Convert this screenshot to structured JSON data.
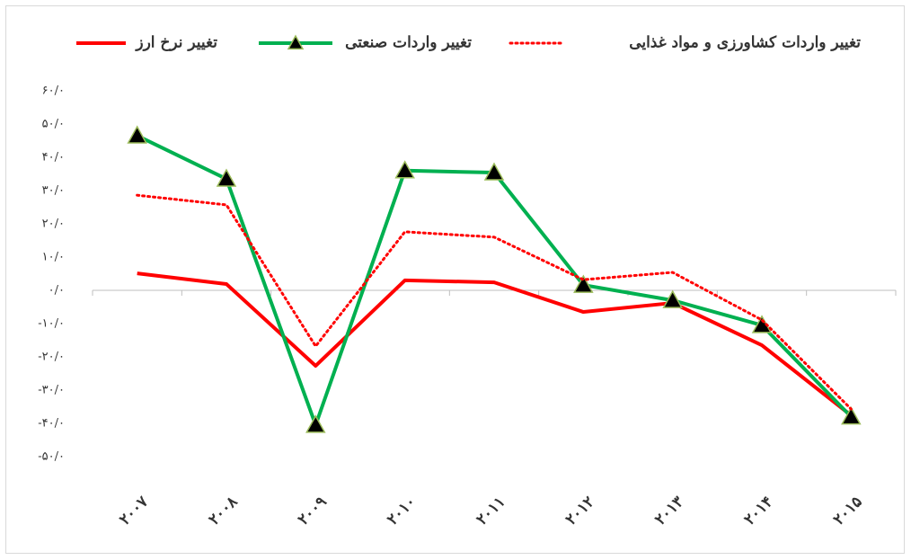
{
  "chart_data": {
    "type": "line",
    "categories": [
      "۲۰۰۷",
      "۲۰۰۸",
      "۲۰۰۹",
      "۲۰۱۰",
      "۲۰۱۱",
      "۲۰۱۲",
      "۲۰۱۳",
      "۲۰۱۴",
      "۲۰۱۵"
    ],
    "series": [
      {
        "name": "تغییر نرخ ارز",
        "color": "#ff0000",
        "line_style": "solid",
        "values": [
          5.1,
          1.9,
          -22.7,
          3.0,
          2.4,
          -6.5,
          -3.8,
          -16.5,
          -37.6
        ]
      },
      {
        "name": "تغییر واردات صنعتی",
        "color": "#00b050",
        "line_style": "solid",
        "marker": "triangle",
        "values": [
          46.5,
          33.5,
          -40.5,
          36.0,
          35.4,
          1.6,
          -3.0,
          -10.5,
          -38.0
        ]
      },
      {
        "name": "تغییر واردات کشاورزی و مواد غذایی",
        "color": "#ff0000",
        "line_style": "dotted",
        "values": [
          28.6,
          25.7,
          -16.8,
          17.6,
          16.0,
          3.2,
          5.4,
          -8.9,
          -35.7
        ]
      }
    ],
    "ylim": [
      -60,
      60
    ],
    "yticks": [
      {
        "value": 60,
        "label": "۶۰/۰"
      },
      {
        "value": 50,
        "label": "۵۰/۰"
      },
      {
        "value": 40,
        "label": "۴۰/۰"
      },
      {
        "value": 30,
        "label": "۳۰/۰"
      },
      {
        "value": 20,
        "label": "۲۰/۰"
      },
      {
        "value": 10,
        "label": "۱۰/۰"
      },
      {
        "value": 0,
        "label": "۰/۰"
      },
      {
        "value": -10,
        "label": "-۱۰/۰"
      },
      {
        "value": -20,
        "label": "-۲۰/۰"
      },
      {
        "value": -30,
        "label": "-۳۰/۰"
      },
      {
        "value": -40,
        "label": "-۴۰/۰"
      },
      {
        "value": -50,
        "label": "-۵۰/۰"
      }
    ],
    "grid": false,
    "legend": "top"
  }
}
